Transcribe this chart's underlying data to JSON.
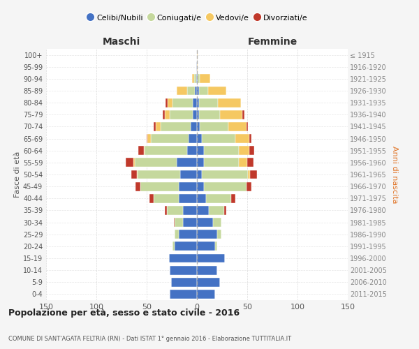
{
  "age_groups": [
    "0-4",
    "5-9",
    "10-14",
    "15-19",
    "20-24",
    "25-29",
    "30-34",
    "35-39",
    "40-44",
    "45-49",
    "50-54",
    "55-59",
    "60-64",
    "65-69",
    "70-74",
    "75-79",
    "80-84",
    "85-89",
    "90-94",
    "95-99",
    "100+"
  ],
  "birth_years": [
    "2011-2015",
    "2006-2010",
    "2001-2005",
    "1996-2000",
    "1991-1995",
    "1986-1990",
    "1981-1985",
    "1976-1980",
    "1971-1975",
    "1966-1970",
    "1961-1965",
    "1956-1960",
    "1951-1955",
    "1946-1950",
    "1941-1945",
    "1936-1940",
    "1931-1935",
    "1926-1930",
    "1921-1925",
    "1916-1920",
    "≤ 1915"
  ],
  "maschi": {
    "celibi": [
      27,
      26,
      27,
      28,
      22,
      18,
      14,
      14,
      18,
      18,
      17,
      20,
      10,
      8,
      6,
      4,
      4,
      2,
      1,
      1,
      0
    ],
    "coniugati": [
      0,
      0,
      0,
      0,
      2,
      4,
      8,
      16,
      25,
      38,
      42,
      42,
      42,
      38,
      30,
      23,
      20,
      8,
      2,
      0,
      0
    ],
    "vedovi": [
      0,
      0,
      0,
      0,
      0,
      0,
      0,
      0,
      0,
      0,
      1,
      1,
      1,
      3,
      5,
      5,
      5,
      10,
      2,
      0,
      0
    ],
    "divorziati": [
      0,
      0,
      0,
      0,
      0,
      0,
      1,
      2,
      4,
      5,
      5,
      8,
      5,
      1,
      2,
      2,
      2,
      0,
      0,
      0,
      0
    ]
  },
  "femmine": {
    "nubili": [
      18,
      23,
      20,
      28,
      18,
      20,
      16,
      12,
      9,
      7,
      5,
      7,
      7,
      5,
      3,
      2,
      2,
      2,
      1,
      0,
      0
    ],
    "coniugate": [
      0,
      0,
      0,
      0,
      2,
      4,
      8,
      15,
      25,
      42,
      46,
      35,
      35,
      33,
      28,
      21,
      19,
      9,
      2,
      0,
      0
    ],
    "vedove": [
      0,
      0,
      0,
      0,
      0,
      0,
      0,
      0,
      0,
      0,
      2,
      8,
      10,
      14,
      18,
      22,
      23,
      18,
      10,
      1,
      1
    ],
    "divorziate": [
      0,
      0,
      0,
      0,
      0,
      0,
      0,
      2,
      4,
      5,
      7,
      6,
      5,
      2,
      2,
      2,
      0,
      0,
      0,
      0,
      0
    ]
  },
  "colors": {
    "celibi": "#4472C4",
    "coniugati": "#C5D89D",
    "vedovi": "#F5C862",
    "divorziati": "#C0392B"
  },
  "xlim": 150,
  "title": "Popolazione per età, sesso e stato civile - 2016",
  "subtitle": "COMUNE DI SANT'AGATA FELTRIA (RN) - Dati ISTAT 1° gennaio 2016 - Elaborazione TUTTITALIA.IT",
  "ylabel_left": "Fasce di età",
  "ylabel_right": "Anni di nascita",
  "xlabel_left": "Maschi",
  "xlabel_right": "Femmine",
  "legend_labels": [
    "Celibi/Nubili",
    "Coniugati/e",
    "Vedovi/e",
    "Divorziati/e"
  ],
  "bg_color": "#f5f5f5",
  "plot_bg_color": "#ffffff"
}
